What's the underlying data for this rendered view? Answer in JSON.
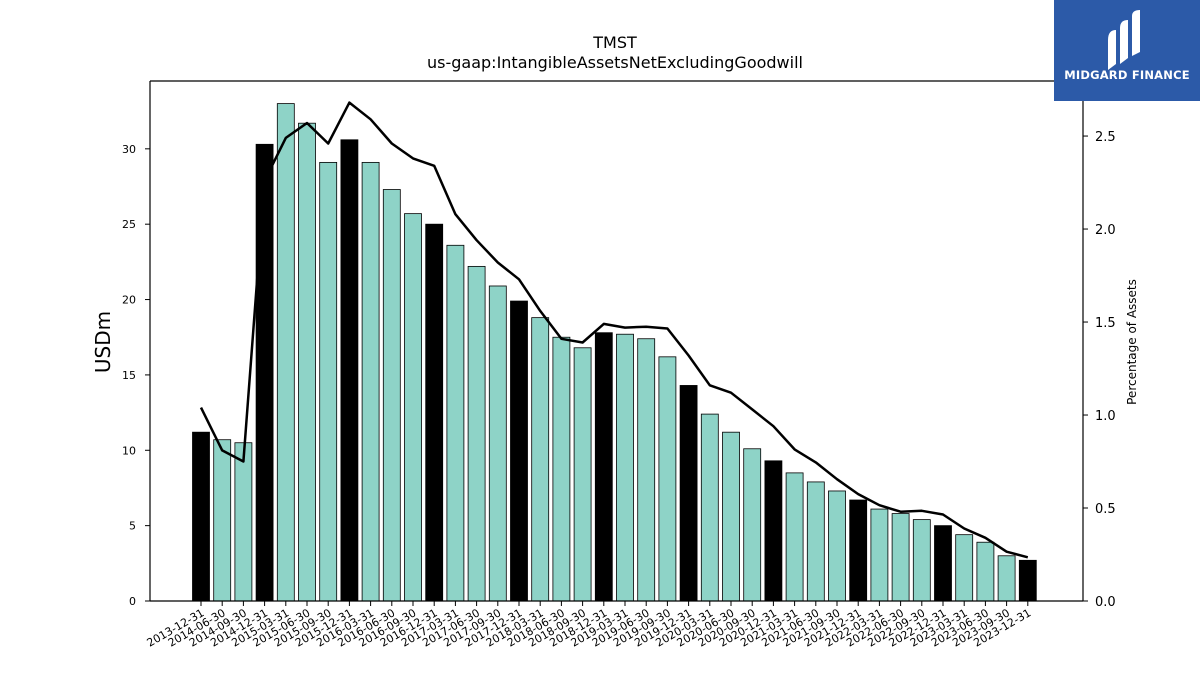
{
  "chart_data": {
    "type": "bar",
    "title": "TMST",
    "subtitle": "us-gaap:IntangibleAssetsNetExcludingGoodwill",
    "ylabel": "USDm",
    "y2label": "Percentage of Assets",
    "ylim": [
      0,
      34.5
    ],
    "y2lim": [
      0,
      2.796
    ],
    "yticks": [
      0,
      5,
      10,
      15,
      20,
      25,
      30
    ],
    "y2ticks": [
      0.0,
      0.5,
      1.0,
      1.5,
      2.0,
      2.5
    ],
    "categories": [
      "2013-12-31",
      "2014-06-30",
      "2014-09-30",
      "2014-12-31",
      "2015-03-31",
      "2015-06-30",
      "2015-09-30",
      "2015-12-31",
      "2016-03-31",
      "2016-06-30",
      "2016-09-30",
      "2016-12-31",
      "2017-03-31",
      "2017-06-30",
      "2017-09-30",
      "2017-12-31",
      "2018-03-31",
      "2018-06-30",
      "2018-09-30",
      "2018-12-31",
      "2019-03-31",
      "2019-06-30",
      "2019-09-30",
      "2019-12-31",
      "2020-03-31",
      "2020-06-30",
      "2020-09-30",
      "2020-12-31",
      "2021-03-31",
      "2021-06-30",
      "2021-09-30",
      "2021-12-31",
      "2022-03-31",
      "2022-06-30",
      "2022-09-30",
      "2022-12-31",
      "2023-03-31",
      "2023-06-30",
      "2023-09-30",
      "2023-12-31"
    ],
    "values": [
      11.2,
      10.7,
      10.5,
      30.3,
      33.0,
      31.7,
      29.1,
      30.6,
      29.1,
      27.3,
      25.7,
      25.0,
      23.6,
      22.2,
      20.9,
      19.9,
      18.8,
      17.5,
      16.8,
      17.8,
      17.7,
      17.4,
      16.2,
      14.3,
      12.4,
      11.2,
      10.1,
      9.3,
      8.5,
      7.9,
      7.3,
      6.7,
      6.1,
      5.8,
      5.4,
      5.0,
      4.4,
      3.9,
      3.0,
      2.7
    ],
    "line_values": [
      1.04,
      0.81,
      0.75,
      2.26,
      2.49,
      2.57,
      2.46,
      2.68,
      2.59,
      2.46,
      2.38,
      2.34,
      2.08,
      1.94,
      1.82,
      1.73,
      1.56,
      1.41,
      1.39,
      1.49,
      1.47,
      1.475,
      1.465,
      1.32,
      1.16,
      1.12,
      1.03,
      0.94,
      0.815,
      0.745,
      0.655,
      0.575,
      0.515,
      0.48,
      0.485,
      0.465,
      0.39,
      0.34,
      0.265,
      0.235
    ],
    "colors": {
      "annual": "#000000",
      "quarter": "#8ed3c7",
      "line": "#000000"
    }
  },
  "logo": {
    "text": "MIDGARD FINANCE"
  }
}
